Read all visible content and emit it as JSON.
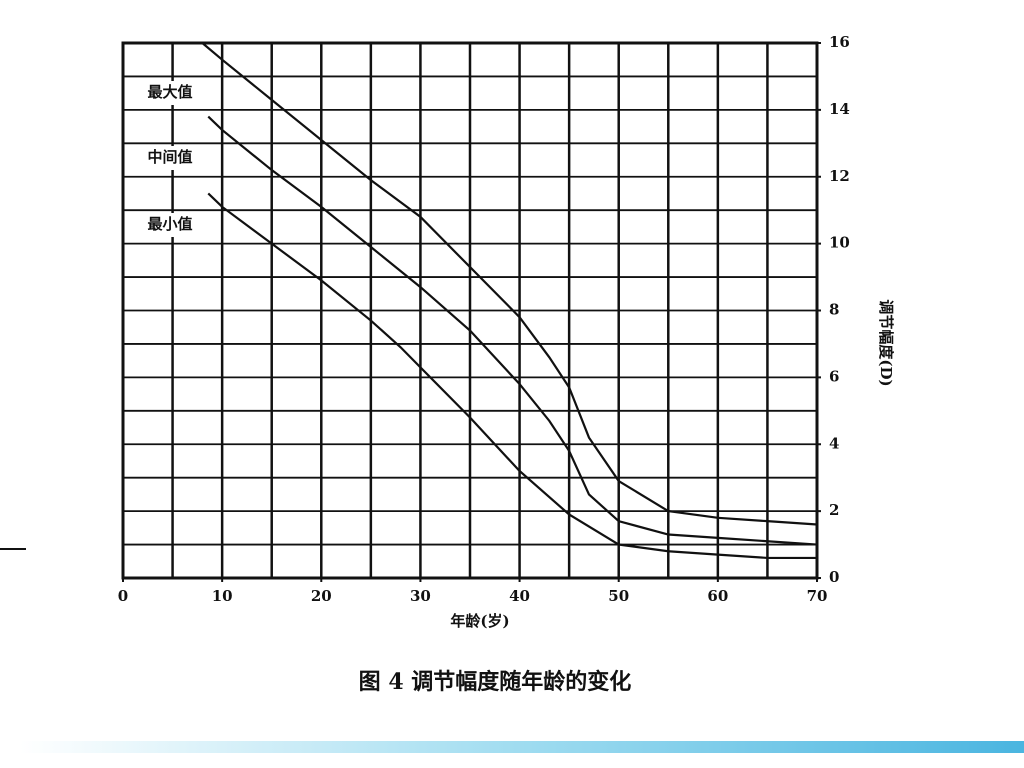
{
  "chart_data": {
    "type": "line",
    "title": "图 4 调节幅度随年龄的变化",
    "xlabel": "年龄(岁)",
    "ylabel": "调节幅度(D)",
    "xlim": [
      0,
      70
    ],
    "xticks": [
      0,
      10,
      20,
      30,
      40,
      50,
      60,
      70
    ],
    "ylim": [
      0,
      16
    ],
    "yticks": [
      0,
      2,
      4,
      6,
      8,
      10,
      12,
      14,
      16
    ],
    "x_grid": [
      0,
      5,
      10,
      15,
      20,
      25,
      30,
      35,
      40,
      45,
      50,
      55,
      60,
      65,
      70
    ],
    "y_grid": [
      0,
      1,
      2,
      3,
      4,
      5,
      6,
      7,
      8,
      9,
      10,
      11,
      12,
      13,
      14,
      15,
      16
    ],
    "grid": true,
    "series": [
      {
        "name": "最大值",
        "color": "#111111",
        "x": [
          8,
          10,
          15,
          20,
          25,
          30,
          35,
          40,
          43,
          45,
          47,
          50,
          55,
          60,
          65,
          70
        ],
        "values": [
          16,
          15.5,
          14.3,
          13.1,
          11.9,
          10.8,
          9.3,
          7.8,
          6.6,
          5.7,
          4.2,
          2.9,
          2.0,
          1.8,
          1.7,
          1.6
        ]
      },
      {
        "name": "中间值",
        "color": "#111111",
        "x": [
          8.6,
          10,
          15,
          20,
          25,
          30,
          35,
          40,
          43,
          45,
          47,
          50,
          55,
          60,
          65,
          70
        ],
        "values": [
          13.8,
          13.4,
          12.2,
          11.1,
          9.9,
          8.7,
          7.4,
          5.8,
          4.7,
          3.8,
          2.5,
          1.7,
          1.3,
          1.2,
          1.1,
          1.0
        ]
      },
      {
        "name": "最小值",
        "color": "#111111",
        "x": [
          8.6,
          10,
          15,
          20,
          25,
          28,
          30,
          35,
          40,
          45,
          50,
          55,
          60,
          65,
          70
        ],
        "values": [
          11.5,
          11.1,
          10.0,
          8.9,
          7.7,
          6.9,
          6.3,
          4.8,
          3.2,
          1.9,
          1.0,
          0.8,
          0.7,
          0.6,
          0.6
        ]
      }
    ]
  }
}
